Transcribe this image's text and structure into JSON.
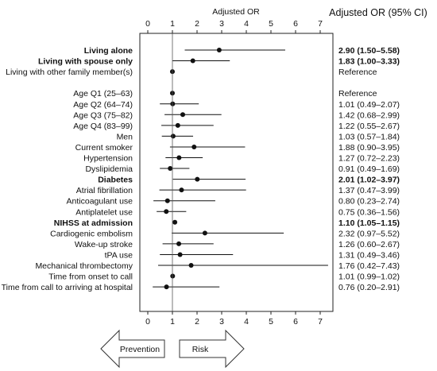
{
  "chart_data": {
    "type": "forest",
    "axis_title": "Adjusted OR",
    "ci_header": "Adjusted OR (95% CI)",
    "xlim": [
      0,
      7
    ],
    "xticks": [
      0,
      1,
      2,
      3,
      4,
      5,
      6,
      7
    ],
    "reference_line": 1,
    "rows": [
      {
        "label": "Living alone",
        "bold": true,
        "or": 2.9,
        "lo": 1.5,
        "hi": 5.58,
        "text": "2.90 (1.50–5.58)"
      },
      {
        "label": "Living with spouse only",
        "bold": true,
        "or": 1.83,
        "lo": 1.0,
        "hi": 3.33,
        "text": "1.83 (1.00–3.33)"
      },
      {
        "label": "Living with other family member(s)",
        "bold": false,
        "or": 1.0,
        "lo": null,
        "hi": null,
        "text": "Reference"
      },
      {
        "label": "",
        "bold": false,
        "or": null,
        "lo": null,
        "hi": null,
        "text": ""
      },
      {
        "label": "Age Q1 (25–63)",
        "bold": false,
        "or": 1.0,
        "lo": null,
        "hi": null,
        "text": "Reference"
      },
      {
        "label": "Age Q2 (64–74)",
        "bold": false,
        "or": 1.01,
        "lo": 0.49,
        "hi": 2.07,
        "text": "1.01 (0.49–2.07)"
      },
      {
        "label": "Age Q3 (75–82)",
        "bold": false,
        "or": 1.42,
        "lo": 0.68,
        "hi": 2.99,
        "text": "1.42 (0.68–2.99)"
      },
      {
        "label": "Age Q4 (83–99)",
        "bold": false,
        "or": 1.22,
        "lo": 0.55,
        "hi": 2.67,
        "text": "1.22 (0.55–2.67)"
      },
      {
        "label": "Men",
        "bold": false,
        "or": 1.03,
        "lo": 0.57,
        "hi": 1.84,
        "text": "1.03 (0.57–1.84)"
      },
      {
        "label": "Current smoker",
        "bold": false,
        "or": 1.88,
        "lo": 0.9,
        "hi": 3.95,
        "text": "1.88 (0.90–3.95)"
      },
      {
        "label": "Hypertension",
        "bold": false,
        "or": 1.27,
        "lo": 0.72,
        "hi": 2.23,
        "text": "1.27 (0.72–2.23)"
      },
      {
        "label": "Dyslipidemia",
        "bold": false,
        "or": 0.91,
        "lo": 0.49,
        "hi": 1.69,
        "text": "0.91 (0.49–1.69)"
      },
      {
        "label": "Diabetes",
        "bold": true,
        "or": 2.01,
        "lo": 1.02,
        "hi": 3.97,
        "text": "2.01 (1.02–3.97)"
      },
      {
        "label": "Atrial fibrillation",
        "bold": false,
        "or": 1.37,
        "lo": 0.47,
        "hi": 3.99,
        "text": "1.37 (0.47–3.99)"
      },
      {
        "label": "Anticoagulant use",
        "bold": false,
        "or": 0.8,
        "lo": 0.23,
        "hi": 2.74,
        "text": "0.80 (0.23–2.74)"
      },
      {
        "label": "Antiplatelet use",
        "bold": false,
        "or": 0.75,
        "lo": 0.36,
        "hi": 1.56,
        "text": "0.75 (0.36–1.56)"
      },
      {
        "label": "NIHSS at admission",
        "bold": true,
        "or": 1.1,
        "lo": 1.05,
        "hi": 1.15,
        "text": "1.10 (1.05–1.15)"
      },
      {
        "label": "Cardiogenic embolism",
        "bold": false,
        "or": 2.32,
        "lo": 0.97,
        "hi": 5.52,
        "text": "2.32 (0.97–5.52)"
      },
      {
        "label": "Wake-up stroke",
        "bold": false,
        "or": 1.26,
        "lo": 0.6,
        "hi": 2.67,
        "text": "1.26 (0.60–2.67)"
      },
      {
        "label": "tPA use",
        "bold": false,
        "or": 1.31,
        "lo": 0.49,
        "hi": 3.46,
        "text": "1.31 (0.49–3.46)"
      },
      {
        "label": "Mechanical thrombectomy",
        "bold": false,
        "or": 1.76,
        "lo": 0.42,
        "hi": 7.43,
        "text": "1.76 (0.42–7.43)"
      },
      {
        "label": "Time from onset to call",
        "bold": false,
        "or": 1.01,
        "lo": 0.99,
        "hi": 1.02,
        "text": "1.01 (0.99–1.02)"
      },
      {
        "label": "Time from call to arriving at hospital",
        "bold": false,
        "or": 0.76,
        "lo": 0.2,
        "hi": 2.91,
        "text": "0.76 (0.20–2.91)"
      }
    ],
    "arrows": {
      "left": "Prevention",
      "right": "Risk"
    }
  }
}
